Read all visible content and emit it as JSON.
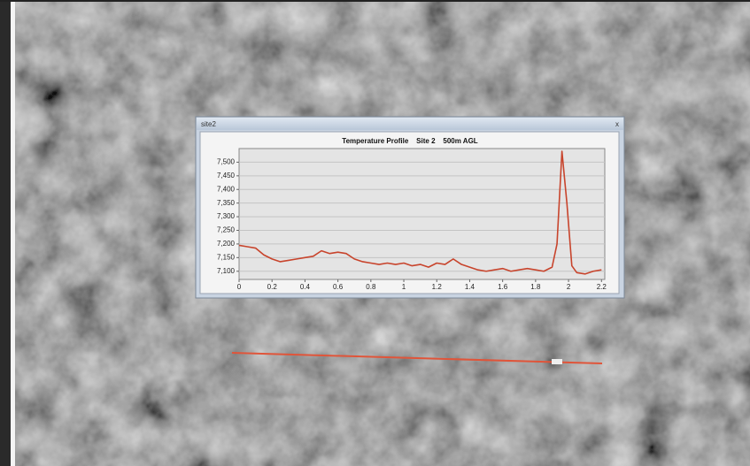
{
  "window": {
    "title": "site2",
    "close": "x"
  },
  "chart_data": {
    "type": "line",
    "title": "Temperature Profile    Site 2    500m AGL",
    "x": [
      0,
      0.05,
      0.1,
      0.15,
      0.2,
      0.25,
      0.3,
      0.35,
      0.4,
      0.45,
      0.5,
      0.55,
      0.6,
      0.65,
      0.7,
      0.75,
      0.8,
      0.85,
      0.9,
      0.95,
      1.0,
      1.05,
      1.1,
      1.15,
      1.2,
      1.25,
      1.3,
      1.35,
      1.4,
      1.45,
      1.5,
      1.55,
      1.6,
      1.65,
      1.7,
      1.75,
      1.8,
      1.85,
      1.9,
      1.93,
      1.96,
      1.99,
      2.02,
      2.05,
      2.1,
      2.15,
      2.2
    ],
    "values": [
      7195,
      7190,
      7185,
      7160,
      7145,
      7135,
      7140,
      7145,
      7150,
      7155,
      7175,
      7165,
      7170,
      7165,
      7145,
      7135,
      7130,
      7125,
      7130,
      7125,
      7130,
      7120,
      7125,
      7115,
      7130,
      7125,
      7145,
      7125,
      7115,
      7105,
      7100,
      7105,
      7110,
      7100,
      7105,
      7110,
      7105,
      7100,
      7115,
      7200,
      7540,
      7350,
      7120,
      7095,
      7090,
      7100,
      7105
    ],
    "color": "#c8442c",
    "xlim": [
      0,
      2.22
    ],
    "xticks": [
      0,
      0.2,
      0.4,
      0.6,
      0.8,
      1,
      1.2,
      1.4,
      1.6,
      1.8,
      2,
      2.2
    ],
    "ylim": [
      7070,
      7550
    ],
    "yticks": [
      {
        "value": 7100,
        "label": "7,100"
      },
      {
        "value": 7150,
        "label": "7,150"
      },
      {
        "value": 7200,
        "label": "7,200"
      },
      {
        "value": 7250,
        "label": "7,250"
      },
      {
        "value": 7300,
        "label": "7,300"
      },
      {
        "value": 7350,
        "label": "7,350"
      },
      {
        "value": 7400,
        "label": "7,400"
      },
      {
        "value": 7450,
        "label": "7,450"
      },
      {
        "value": 7500,
        "label": "7,500"
      }
    ],
    "grid": true
  }
}
